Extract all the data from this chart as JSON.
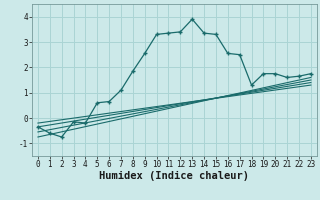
{
  "title": "",
  "xlabel": "Humidex (Indice chaleur)",
  "ylabel": "",
  "xlim": [
    -0.5,
    23.5
  ],
  "ylim": [
    -1.5,
    4.5
  ],
  "xticks": [
    0,
    1,
    2,
    3,
    4,
    5,
    6,
    7,
    8,
    9,
    10,
    11,
    12,
    13,
    14,
    15,
    16,
    17,
    18,
    19,
    20,
    21,
    22,
    23
  ],
  "yticks": [
    -1,
    0,
    1,
    2,
    3,
    4
  ],
  "background_color": "#cce9e9",
  "grid_color": "#aad4d4",
  "line_color": "#1a6b6b",
  "curve_x": [
    0,
    1,
    2,
    3,
    4,
    5,
    6,
    7,
    8,
    9,
    10,
    11,
    12,
    13,
    14,
    15,
    16,
    17,
    18,
    19,
    20,
    21,
    22,
    23
  ],
  "curve_y": [
    -0.35,
    -0.6,
    -0.75,
    -0.15,
    -0.2,
    0.6,
    0.65,
    1.1,
    1.85,
    2.55,
    3.3,
    3.35,
    3.4,
    3.9,
    3.35,
    3.3,
    2.55,
    2.5,
    1.3,
    1.75,
    1.75,
    1.6,
    1.65,
    1.75
  ],
  "ref_lines": [
    {
      "x": [
        0,
        23
      ],
      "y": [
        -0.75,
        1.6
      ]
    },
    {
      "x": [
        0,
        23
      ],
      "y": [
        -0.55,
        1.5
      ]
    },
    {
      "x": [
        0,
        23
      ],
      "y": [
        -0.35,
        1.4
      ]
    },
    {
      "x": [
        0,
        23
      ],
      "y": [
        -0.2,
        1.3
      ]
    }
  ],
  "tick_fontsize": 5.5,
  "label_fontsize": 7.5
}
